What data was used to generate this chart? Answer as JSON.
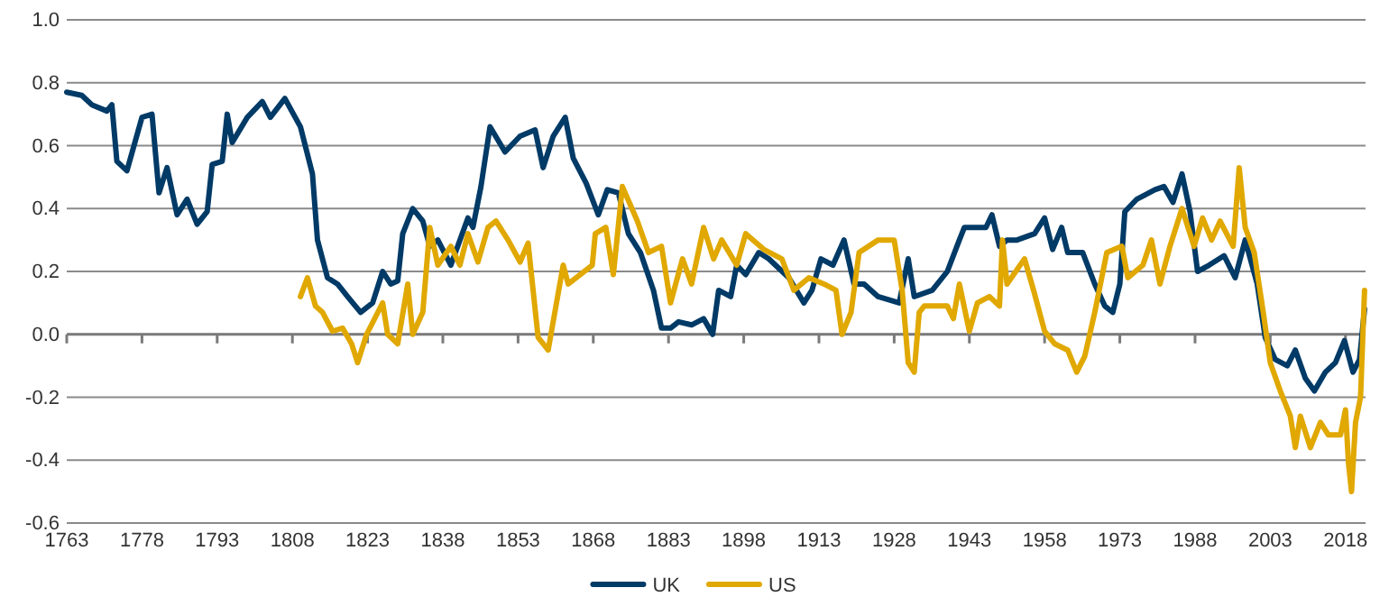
{
  "chart_data": {
    "type": "line",
    "xlim": [
      1763,
      2022
    ],
    "xticks": [
      1763,
      1778,
      1793,
      1808,
      1823,
      1838,
      1853,
      1868,
      1883,
      1898,
      1913,
      1928,
      1943,
      1958,
      1973,
      1988,
      2003,
      2018
    ],
    "ylim": [
      -0.6,
      1.0
    ],
    "yticks": [
      {
        "value": -0.6,
        "label": "-0.6"
      },
      {
        "value": -0.4,
        "label": "-0.4"
      },
      {
        "value": -0.2,
        "label": "-0.2"
      },
      {
        "value": 0,
        "label": "0.0"
      },
      {
        "value": 0.2,
        "label": "0.2"
      },
      {
        "value": 0.4,
        "label": "0.4"
      },
      {
        "value": 0.6,
        "label": "0.6"
      },
      {
        "value": 0.8,
        "label": "0.8"
      },
      {
        "value": 1.0,
        "label": "1.0"
      }
    ],
    "grid": "y",
    "ref_lines": [
      {
        "axis": "y",
        "value": 0,
        "color": "#7a7a7a"
      }
    ],
    "legend": "bottom",
    "marker": "none",
    "line_style": "solid",
    "series": [
      {
        "name": "UK",
        "color": "#003a66",
        "x": [
          1763,
          1766,
          1768,
          1771,
          1772,
          1773,
          1775,
          1778,
          1780,
          1781.4,
          1783,
          1785,
          1787,
          1789,
          1791,
          1792,
          1794,
          1795,
          1796,
          1799,
          1802,
          1803.6,
          1806.5,
          1809.6,
          1812,
          1813,
          1815,
          1817,
          1819,
          1821.6,
          1824,
          1826,
          1827.6,
          1829,
          1830,
          1832,
          1834,
          1835.4,
          1837,
          1839.6,
          1843,
          1844,
          1845.6,
          1847.4,
          1850.4,
          1853.4,
          1856.4,
          1858,
          1860,
          1862.4,
          1864,
          1866.6,
          1869,
          1870.8,
          1873,
          1875,
          1877.4,
          1880,
          1881.6,
          1883.4,
          1885,
          1887.6,
          1890,
          1891.8,
          1893,
          1895.4,
          1896.6,
          1898.4,
          1901,
          1903,
          1907,
          1910,
          1911.6,
          1913.4,
          1915.8,
          1918,
          1920,
          1922,
          1924.8,
          1929,
          1930.8,
          1932,
          1935.6,
          1938.6,
          1941,
          1942,
          1946.3,
          1947.5,
          1949,
          1950.5,
          1952.5,
          1956,
          1958,
          1959.6,
          1961.4,
          1962.6,
          1965.6,
          1968,
          1970,
          1971.6,
          1973,
          1974,
          1976.4,
          1980,
          1981.8,
          1983.6,
          1985.4,
          1987,
          1988.5,
          1990.8,
          1993.8,
          1996,
          1998,
          2000.4,
          2002,
          2004,
          2006.4,
          2008,
          2010,
          2011.8,
          2014,
          2016,
          2017.8,
          2019.5,
          2020.8,
          2021.8
        ],
        "values": [
          0.77,
          0.76,
          0.73,
          0.71,
          0.73,
          0.55,
          0.52,
          0.69,
          0.7,
          0.45,
          0.53,
          0.38,
          0.43,
          0.35,
          0.39,
          0.54,
          0.55,
          0.7,
          0.61,
          0.69,
          0.74,
          0.69,
          0.75,
          0.66,
          0.51,
          0.3,
          0.18,
          0.16,
          0.12,
          0.07,
          0.1,
          0.2,
          0.16,
          0.17,
          0.32,
          0.4,
          0.36,
          0.28,
          0.3,
          0.22,
          0.37,
          0.34,
          0.47,
          0.66,
          0.58,
          0.63,
          0.65,
          0.53,
          0.63,
          0.69,
          0.56,
          0.48,
          0.38,
          0.46,
          0.45,
          0.32,
          0.26,
          0.14,
          0.02,
          0.02,
          0.04,
          0.03,
          0.05,
          0.0,
          0.14,
          0.12,
          0.22,
          0.19,
          0.26,
          0.24,
          0.18,
          0.1,
          0.14,
          0.24,
          0.22,
          0.3,
          0.16,
          0.16,
          0.12,
          0.1,
          0.24,
          0.12,
          0.14,
          0.2,
          0.3,
          0.34,
          0.34,
          0.38,
          0.28,
          0.3,
          0.3,
          0.32,
          0.37,
          0.27,
          0.34,
          0.26,
          0.26,
          0.16,
          0.09,
          0.07,
          0.16,
          0.39,
          0.43,
          0.46,
          0.47,
          0.42,
          0.51,
          0.39,
          0.2,
          0.22,
          0.25,
          0.18,
          0.3,
          0.16,
          -0.01,
          -0.08,
          -0.1,
          -0.05,
          -0.14,
          -0.18,
          -0.12,
          -0.09,
          -0.02,
          -0.12,
          -0.08,
          0.08
        ]
      },
      {
        "name": "US",
        "color": "#e0a800",
        "x": [
          1809.6,
          1811,
          1812.6,
          1814,
          1816,
          1818,
          1819.8,
          1821,
          1822.8,
          1826,
          1827,
          1829,
          1831,
          1832,
          1834,
          1835.4,
          1837,
          1839.6,
          1841.4,
          1843,
          1845,
          1847,
          1848.6,
          1851,
          1853.4,
          1855,
          1857,
          1859,
          1862,
          1863,
          1867.8,
          1868.4,
          1870.5,
          1872,
          1873.8,
          1876.8,
          1879,
          1881.6,
          1883.4,
          1885.8,
          1887.6,
          1890,
          1892,
          1893.6,
          1896.6,
          1898.4,
          1902,
          1905.6,
          1908,
          1911,
          1914,
          1916.4,
          1917.6,
          1919.4,
          1921,
          1924.8,
          1928,
          1929.6,
          1930.8,
          1932,
          1933,
          1934,
          1938.6,
          1939.8,
          1941,
          1943,
          1944.6,
          1947,
          1949,
          1949.6,
          1950.5,
          1954,
          1955.8,
          1958,
          1960,
          1962.6,
          1964.4,
          1966,
          1968,
          1970.4,
          1973.4,
          1974.6,
          1977.6,
          1979.3,
          1981,
          1983,
          1985.4,
          1987.8,
          1989.5,
          1991.3,
          1993,
          1995.6,
          1996.8,
          1998,
          1999.8,
          2001.6,
          2003,
          2005,
          2007,
          2008,
          2009,
          2011,
          2013,
          2014.6,
          2017,
          2018,
          2018.6,
          2019.2,
          2020,
          2021,
          2021.8
        ],
        "values": [
          0.12,
          0.18,
          0.09,
          0.07,
          0.01,
          0.02,
          -0.03,
          -0.09,
          0.0,
          0.1,
          0.0,
          -0.03,
          0.16,
          0.0,
          0.07,
          0.34,
          0.22,
          0.28,
          0.22,
          0.32,
          0.23,
          0.34,
          0.36,
          0.3,
          0.23,
          0.29,
          -0.01,
          -0.05,
          0.22,
          0.16,
          0.22,
          0.32,
          0.34,
          0.19,
          0.47,
          0.36,
          0.26,
          0.28,
          0.1,
          0.24,
          0.16,
          0.34,
          0.24,
          0.3,
          0.22,
          0.32,
          0.27,
          0.24,
          0.14,
          0.18,
          0.16,
          0.14,
          0.0,
          0.07,
          0.26,
          0.3,
          0.3,
          0.14,
          -0.09,
          -0.12,
          0.07,
          0.09,
          0.09,
          0.05,
          0.16,
          0.01,
          0.1,
          0.12,
          0.09,
          0.3,
          0.16,
          0.24,
          0.14,
          0.01,
          -0.03,
          -0.05,
          -0.12,
          -0.07,
          0.07,
          0.26,
          0.28,
          0.18,
          0.22,
          0.3,
          0.16,
          0.28,
          0.4,
          0.28,
          0.37,
          0.3,
          0.36,
          0.28,
          0.53,
          0.34,
          0.26,
          0.07,
          -0.09,
          -0.18,
          -0.26,
          -0.36,
          -0.26,
          -0.36,
          -0.28,
          -0.32,
          -0.32,
          -0.24,
          -0.41,
          -0.5,
          -0.28,
          -0.2,
          0.14
        ]
      }
    ]
  }
}
